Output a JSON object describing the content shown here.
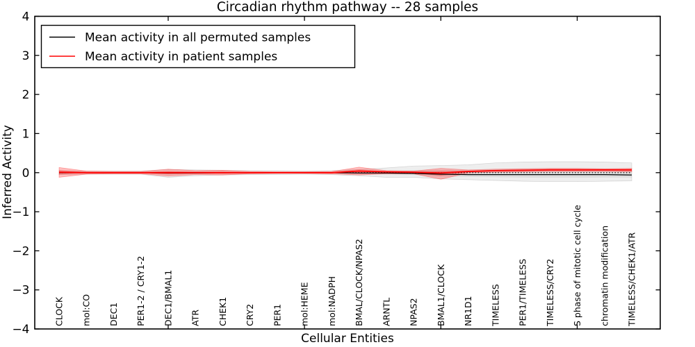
{
  "legend": {
    "items": [
      {
        "label": "Mean activity in all permuted samples",
        "color": "#000000"
      },
      {
        "label": "Mean activity in patient samples",
        "color": "#ff0000"
      }
    ],
    "position": "upper left"
  },
  "chart_data": {
    "type": "line",
    "title": "Circadian rhythm pathway -- 28 samples",
    "xlabel": "Cellular Entities",
    "ylabel": "Inferred Activity",
    "ylim": [
      -4,
      4
    ],
    "grid": false,
    "yticks": [
      {
        "label": "4",
        "value": 4
      },
      {
        "label": "3",
        "value": 3
      },
      {
        "label": "2",
        "value": 2
      },
      {
        "label": "1",
        "value": 1
      },
      {
        "label": "0",
        "value": 0
      },
      {
        "label": "−1",
        "value": -1
      },
      {
        "label": "−2",
        "value": -2
      },
      {
        "label": "−3",
        "value": -3
      },
      {
        "label": "−4",
        "value": -4
      }
    ],
    "xticks_positions": [
      5,
      10,
      15,
      20
    ],
    "categories": [
      "CLOCK",
      "mol:CO",
      "DEC1",
      "PER1-2 / CRY1-2",
      "DEC1/BMAL1",
      "ATR",
      "CHEK1",
      "CRY2",
      "PER1",
      "mol:HEME",
      "mol:NADPH",
      "BMAL/CLOCK/NPAS2",
      "ARNTL",
      "NPAS2",
      "BMAL1/CLOCK",
      "NR1D1",
      "TIMELESS",
      "PER1/TIMELESS",
      "TIMELESS/CRY2",
      "S phase of mitotic cell cycle",
      "chromatin modification",
      "TIMELESS/CHEK1/ATR"
    ],
    "series": [
      {
        "name": "Mean activity in all permuted samples",
        "color": "#000000",
        "style": "solid",
        "values": [
          0,
          0,
          0,
          0,
          -0.01,
          -0.01,
          0,
          0,
          0,
          0,
          0,
          -0.01,
          -0.01,
          -0.02,
          -0.04,
          -0.05,
          -0.05,
          -0.05,
          -0.05,
          -0.05,
          -0.05,
          -0.06
        ]
      },
      {
        "name": "Mean activity in patient samples",
        "color": "#ff0000",
        "style": "solid",
        "values": [
          0.01,
          0,
          0,
          0,
          0,
          0,
          0,
          0,
          0,
          0,
          0,
          0.04,
          0.02,
          0.01,
          -0.01,
          0.03,
          0.05,
          0.06,
          0.07,
          0.07,
          0.07,
          0.07
        ]
      }
    ],
    "bands": [
      {
        "name": "permuted-samples-activity-range",
        "color": "rgba(64,64,64,0.09)",
        "edge_color": "rgba(0,0,0,0.15)",
        "upper": [
          0.05,
          0.04,
          0.04,
          0.04,
          0.08,
          0.07,
          0.06,
          0.05,
          0.05,
          0.04,
          0.05,
          0.08,
          0.12,
          0.17,
          0.18,
          0.2,
          0.25,
          0.27,
          0.28,
          0.28,
          0.27,
          0.25
        ],
        "lower": [
          -0.05,
          -0.04,
          -0.04,
          -0.04,
          -0.12,
          -0.08,
          -0.06,
          -0.05,
          -0.05,
          -0.04,
          -0.05,
          -0.08,
          -0.12,
          -0.12,
          -0.16,
          -0.18,
          -0.2,
          -0.22,
          -0.23,
          -0.23,
          -0.22,
          -0.21
        ]
      },
      {
        "name": "patient-samples-activity-range",
        "color": "rgba(255,0,0,0.25)",
        "edge_color": "rgba(255,0,0,0.35)",
        "upper": [
          0.13,
          0.04,
          0.03,
          0.03,
          0.09,
          0.05,
          0.06,
          0.03,
          0.02,
          0.02,
          0.03,
          0.14,
          0.05,
          0.04,
          0.11,
          0.07,
          0.09,
          0.1,
          0.11,
          0.11,
          0.1,
          0.11
        ],
        "lower": [
          -0.12,
          -0.04,
          -0.03,
          -0.03,
          -0.09,
          -0.05,
          -0.06,
          -0.03,
          -0.02,
          -0.02,
          -0.03,
          -0.06,
          -0.03,
          -0.03,
          -0.17,
          -0.01,
          0.01,
          0.02,
          0.03,
          0.03,
          0.03,
          0.02
        ]
      }
    ],
    "zero_line": {
      "style": "dotted",
      "color": "#000000",
      "y": 0
    }
  }
}
